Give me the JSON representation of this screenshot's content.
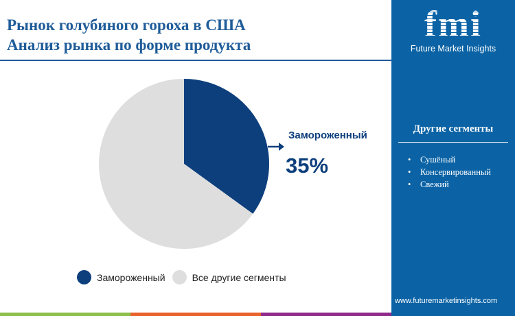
{
  "header": {
    "title_line1": "Рынок голубиного гороха в США",
    "title_line2": "Анализ рынка по форме продукта"
  },
  "chart_data": {
    "type": "pie",
    "title": "",
    "categories": [
      "Замороженный",
      "Все другие сегменты"
    ],
    "values": [
      35,
      65
    ],
    "colors": [
      "#0d3f7d",
      "#dedede"
    ],
    "callout": {
      "label": "Замороженный",
      "value": "35%"
    },
    "legend_placement": "bottom"
  },
  "sidebar": {
    "logo_text": "fmi",
    "logo_sub": "Future Market Insights",
    "segments_title": "Другие сегменты",
    "segments": [
      "Сушёный",
      "Консервированный",
      "Свежий"
    ],
    "url": "www.futuremarketinsights.com",
    "color": "#0b63a5"
  },
  "footer_colors": [
    "#8cc04b",
    "#e8622a",
    "#8e2a8a"
  ]
}
